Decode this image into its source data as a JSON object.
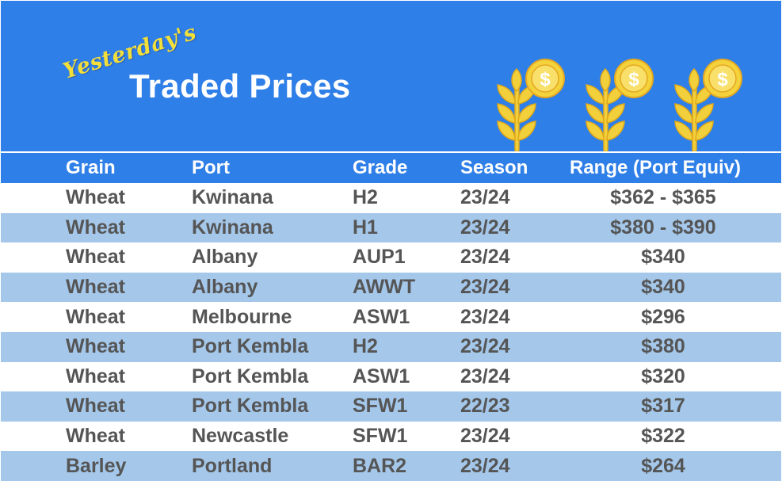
{
  "header": {
    "subtitle": "Yesterday's",
    "title": "Traded Prices",
    "icons": [
      "wheat-coin-icon",
      "wheat-coin-icon",
      "wheat-coin-icon"
    ],
    "colors": {
      "banner": "#2f7fe8",
      "subtitle": "#f3df3a",
      "wheat": "#f2d03b",
      "coin": "#f4d23c"
    }
  },
  "table": {
    "columns": [
      "Grain",
      "Port",
      "Grade",
      "Season",
      "Range (Port Equiv)"
    ],
    "rows": [
      [
        "Wheat",
        "Kwinana",
        "H2",
        "23/24",
        "$362 - $365"
      ],
      [
        "Wheat",
        "Kwinana",
        "H1",
        "23/24",
        "$380 - $390"
      ],
      [
        "Wheat",
        "Albany",
        "AUP1",
        "23/24",
        "$340"
      ],
      [
        "Wheat",
        "Albany",
        "AWWT",
        "23/24",
        "$340"
      ],
      [
        "Wheat",
        "Melbourne",
        "ASW1",
        "23/24",
        "$296"
      ],
      [
        "Wheat",
        "Port Kembla",
        "H2",
        "23/24",
        "$380"
      ],
      [
        "Wheat",
        "Port Kembla",
        "ASW1",
        "23/24",
        "$320"
      ],
      [
        "Wheat",
        "Port Kembla",
        "SFW1",
        "22/23",
        "$317"
      ],
      [
        "Wheat",
        "Newcastle",
        "SFW1",
        "23/24",
        "$322"
      ],
      [
        "Barley",
        "Portland",
        "BAR2",
        "23/24",
        "$264"
      ]
    ],
    "colors": {
      "header_bg": "#2f7fe8",
      "alt_row": "#a4c7ea",
      "text": "#555555"
    }
  }
}
